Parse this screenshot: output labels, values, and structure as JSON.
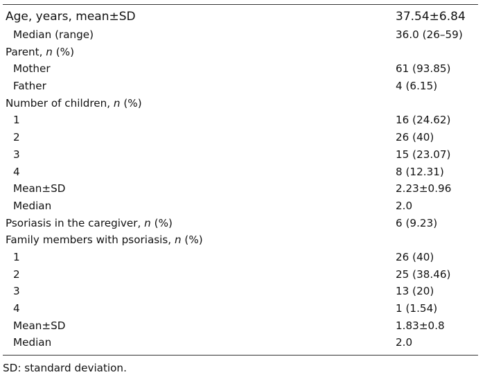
{
  "table": {
    "rows": [
      {
        "label": "Age, years, mean±SD",
        "value": "37.54±6.84",
        "indent": false,
        "head": true
      },
      {
        "label": "Median (range)",
        "value": "36.0 (26–59)",
        "indent": true
      },
      {
        "label": "Parent, ",
        "italic": "n",
        "suffix": " (%)",
        "value": "",
        "indent": false
      },
      {
        "label": "Mother",
        "value": "61 (93.85)",
        "indent": true
      },
      {
        "label": "Father",
        "value": "4 (6.15)",
        "indent": true
      },
      {
        "label": "Number of children, ",
        "italic": "n",
        "suffix": " (%)",
        "value": "",
        "indent": false
      },
      {
        "label": "1",
        "value": "16 (24.62)",
        "indent": true
      },
      {
        "label": "2",
        "value": "26 (40)",
        "indent": true
      },
      {
        "label": "3",
        "value": "15 (23.07)",
        "indent": true
      },
      {
        "label": "4",
        "value": "8 (12.31)",
        "indent": true
      },
      {
        "label": "Mean±SD",
        "value": "2.23±0.96",
        "indent": true
      },
      {
        "label": "Median",
        "value": "2.0",
        "indent": true
      },
      {
        "label": "Psoriasis in the caregiver, ",
        "italic": "n",
        "suffix": " (%)",
        "value": "6 (9.23)",
        "indent": false
      },
      {
        "label": "Family members with psoriasis, ",
        "italic": "n",
        "suffix": " (%)",
        "value": "",
        "indent": false
      },
      {
        "label": "1",
        "value": "26 (40)",
        "indent": true
      },
      {
        "label": "2",
        "value": "25 (38.46)",
        "indent": true
      },
      {
        "label": "3",
        "value": "13 (20)",
        "indent": true
      },
      {
        "label": "4",
        "value": "1 (1.54)",
        "indent": true
      },
      {
        "label": "Mean±SD",
        "value": "1.83±0.8",
        "indent": true
      },
      {
        "label": "Median",
        "value": "2.0",
        "indent": true
      }
    ]
  },
  "footnote": "SD: standard deviation."
}
